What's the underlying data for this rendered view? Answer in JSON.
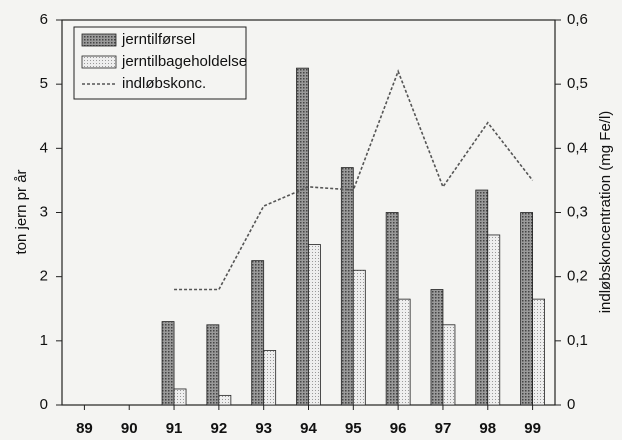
{
  "chart_data": {
    "type": "bar",
    "categories": [
      "89",
      "90",
      "91",
      "92",
      "93",
      "94",
      "95",
      "96",
      "97",
      "98",
      "99"
    ],
    "series": [
      {
        "name": "jerntilførsel",
        "color": "#8a8a8a",
        "values": [
          null,
          null,
          1.3,
          1.25,
          2.25,
          5.25,
          3.7,
          3.0,
          1.8,
          3.35,
          3.0
        ]
      },
      {
        "name": "jerntilbageholdelse",
        "color": "#dcdcdc",
        "values": [
          null,
          null,
          0.25,
          0.15,
          0.85,
          2.5,
          2.1,
          1.65,
          1.25,
          2.65,
          1.65
        ]
      },
      {
        "name": "indløbskonc.",
        "color": "#555555",
        "type": "line",
        "axis": "y2",
        "values": [
          null,
          null,
          0.18,
          0.18,
          0.31,
          0.34,
          0.335,
          0.52,
          0.34,
          0.44,
          0.35
        ]
      }
    ],
    "ylabel": "ton jern pr år",
    "y2label": "indløbskoncentration (mg Fe/l)",
    "ylim": [
      0,
      6
    ],
    "yticks": [
      0,
      1,
      2,
      3,
      4,
      5,
      6
    ],
    "y2lim": [
      0,
      0.6
    ],
    "y2ticks": [
      0,
      {
        "value": 0.1,
        "label": "0,1"
      },
      {
        "value": 0.2,
        "label": "0,2"
      },
      {
        "value": 0.3,
        "label": "0,3"
      },
      {
        "value": 0.4,
        "label": "0,4"
      },
      {
        "value": 0.5,
        "label": "0,5"
      },
      {
        "value": 0.6,
        "label": "0,6"
      }
    ],
    "legend": "top-left"
  }
}
